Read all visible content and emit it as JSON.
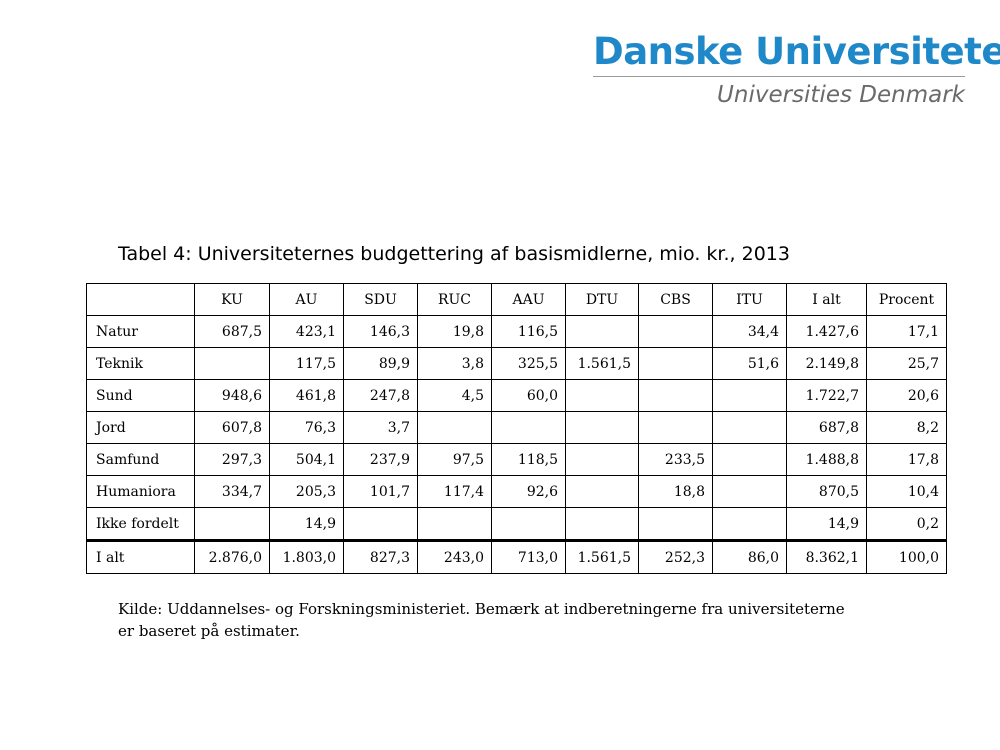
{
  "logo": {
    "main": "Danske Universiteter",
    "sub": "Universities Denmark"
  },
  "title": "Tabel 4: Universiteternes budgettering af basismidlerne, mio. kr., 2013",
  "table": {
    "headers": [
      "",
      "KU",
      "AU",
      "SDU",
      "RUC",
      "AAU",
      "DTU",
      "CBS",
      "ITU",
      "I alt",
      "Procent"
    ],
    "rows": [
      {
        "label": "Natur",
        "values": [
          "687,5",
          "423,1",
          "146,3",
          "19,8",
          "116,5",
          "",
          "",
          "34,4",
          "1.427,6",
          "17,1"
        ]
      },
      {
        "label": "Teknik",
        "values": [
          "",
          "117,5",
          "89,9",
          "3,8",
          "325,5",
          "1.561,5",
          "",
          "51,6",
          "2.149,8",
          "25,7"
        ]
      },
      {
        "label": "Sund",
        "values": [
          "948,6",
          "461,8",
          "247,8",
          "4,5",
          "60,0",
          "",
          "",
          "",
          "1.722,7",
          "20,6"
        ]
      },
      {
        "label": "Jord",
        "values": [
          "607,8",
          "76,3",
          "3,7",
          "",
          "",
          "",
          "",
          "",
          "687,8",
          "8,2"
        ]
      },
      {
        "label": "Samfund",
        "values": [
          "297,3",
          "504,1",
          "237,9",
          "97,5",
          "118,5",
          "",
          "233,5",
          "",
          "1.488,8",
          "17,8"
        ]
      },
      {
        "label": "Humaniora",
        "values": [
          "334,7",
          "205,3",
          "101,7",
          "117,4",
          "92,6",
          "",
          "18,8",
          "",
          "870,5",
          "10,4"
        ]
      },
      {
        "label": "Ikke fordelt",
        "values": [
          "",
          "14,9",
          "",
          "",
          "",
          "",
          "",
          "",
          "14,9",
          "0,2"
        ]
      }
    ],
    "total": {
      "label": "I alt",
      "values": [
        "2.876,0",
        "1.803,0",
        "827,3",
        "243,0",
        "713,0",
        "1.561,5",
        "252,3",
        "86,0",
        "8.362,1",
        "100,0"
      ]
    }
  },
  "source": {
    "line1": "Kilde: Uddannelses- og Forskningsministeriet. Bemærk at indberetningerne fra universiteterne",
    "line2": "er baseret på estimater."
  },
  "colors": {
    "brand_blue": "#1f88c8",
    "subtitle_gray": "#6a6a6a"
  }
}
